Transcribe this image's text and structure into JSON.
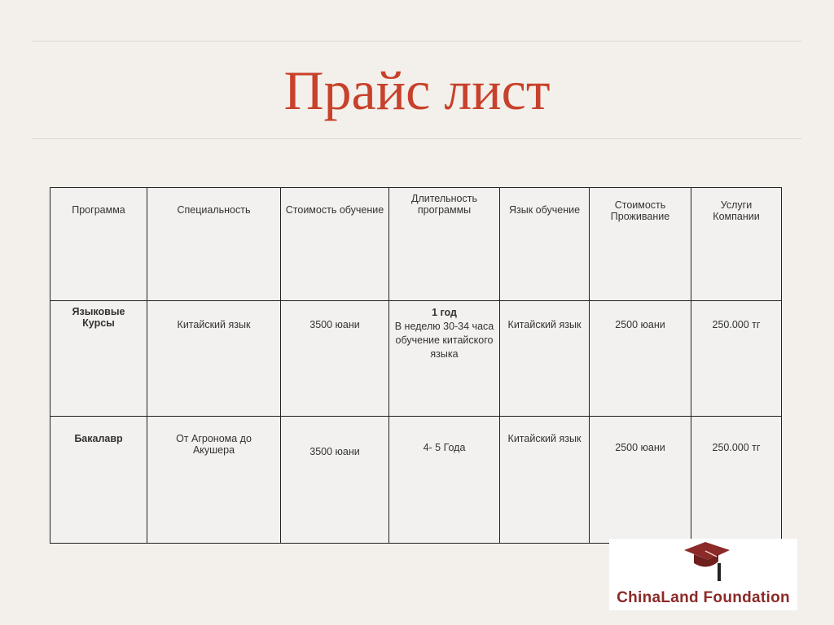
{
  "title": "Прайс лист",
  "table": {
    "headers": [
      "Программа",
      "Специальность",
      "Стоимость обучение",
      "Длительность программы",
      "Язык обучение",
      "Стоимость Проживание",
      "Услуги Компании"
    ],
    "rows": [
      {
        "program": "Языковые Курсы",
        "specialty": "Китайский язык",
        "tuition": "3500 юани",
        "duration_title": "1 год",
        "duration_detail": "В неделю 30-34 часа обучение китайского языка",
        "language": "Китайский язык",
        "housing": "2500 юани",
        "services": "250.000 тг"
      },
      {
        "program": "Бакалавр",
        "specialty": "От Агронома до Акушера",
        "tuition": "3500 юани",
        "duration_title": "4- 5 Года",
        "duration_detail": "",
        "language": "Китайский язык",
        "housing": "2500 юани",
        "services": "250.000 тг"
      }
    ]
  },
  "logo": {
    "text": "ChinaLand Foundation",
    "icon": "graduation-cap-icon",
    "color": "#8b2a28"
  },
  "colors": {
    "title": "#c8412b",
    "background": "#f3f0eb"
  }
}
